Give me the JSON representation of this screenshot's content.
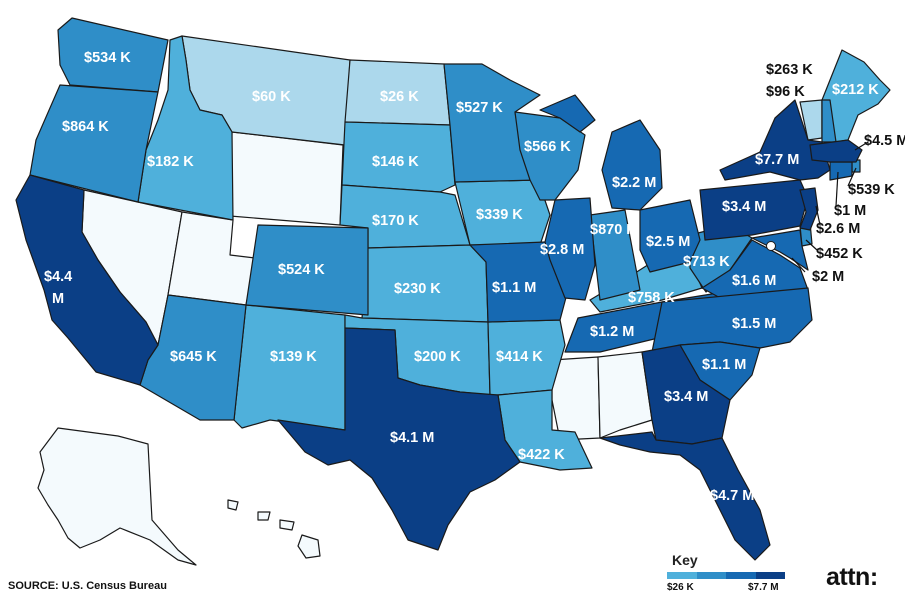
{
  "palette": {
    "c1": "#f4fafd",
    "c2": "#acd8ec",
    "c3": "#4fb0db",
    "c4": "#2f8ec8",
    "c5": "#1669b2",
    "c6": "#0b3f86",
    "dc_dot": "#ffffff"
  },
  "map_labels": {
    "WA": "$534 K",
    "OR": "$864 K",
    "CA": "$4.4 M",
    "ID": "$182 K",
    "MT": "$60 K",
    "ND": "$26 K",
    "SD": "$146 K",
    "NE": "$170 K",
    "KS": "$230 K",
    "CO": "$524 K",
    "AZ": "$645 K",
    "NM": "$139 K",
    "TX": "$4.1 M",
    "OK": "$200 K",
    "MN": "$527 K",
    "IA": "$339 K",
    "MO": "$1.1 M",
    "AR": "$414 K",
    "LA": "$422 K",
    "WI": "$566 K",
    "IL": "$2.8 M",
    "MI": "$2.2 M",
    "IN": "$870 K",
    "OH": "$2.5 M",
    "KY": "$758 K",
    "TN": "$1.2 M",
    "WV": "$713 K",
    "VA": "$1.6 M",
    "NC": "$1.5 M",
    "SC": "$1.1 M",
    "GA": "$3.4 M",
    "FL": "$4.7 M",
    "PA": "$3.4 M",
    "NY": "$7.7 M",
    "ME": "$212 K",
    "VT": "$96 K",
    "NH": "$263 K",
    "MA": "$4.5 M",
    "RI": "$539 K",
    "CT": "$1 M",
    "NJ": "$2.6 M",
    "DE": "$452 K",
    "MD": "$2 M"
  },
  "footer": {
    "source": "SOURCE: U.S. Census Bureau"
  },
  "key": {
    "title": "Key",
    "min_label": "$26 K",
    "max_label": "$7.7 M"
  },
  "brand": {
    "logo_text": "attn:"
  }
}
